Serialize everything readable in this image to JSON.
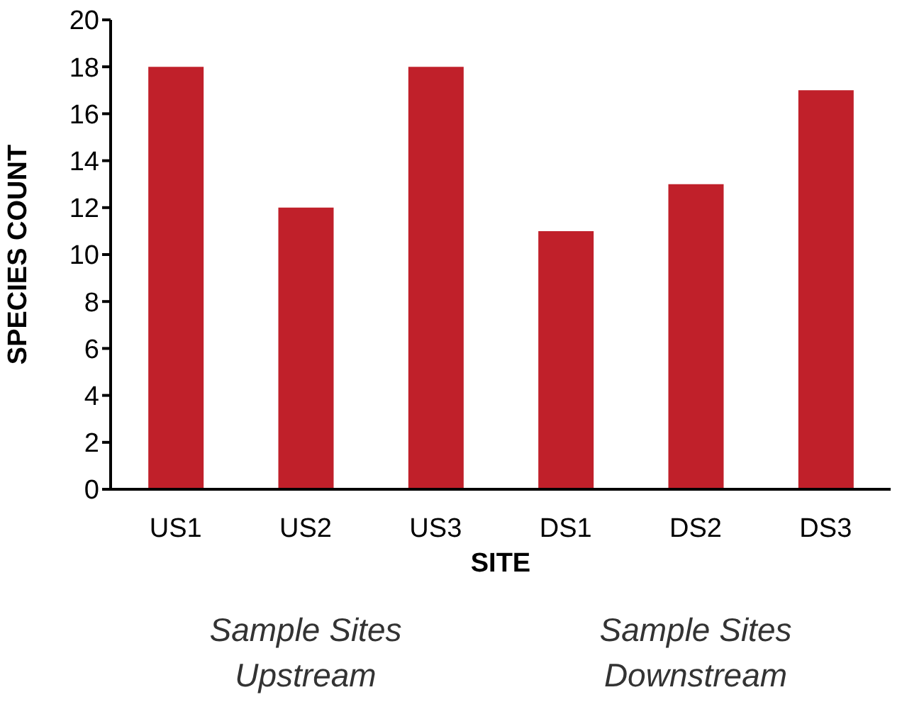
{
  "chart_data": {
    "type": "bar",
    "xlabel": "SITE",
    "ylabel": "SPECIES COUNT",
    "categories": [
      "US1",
      "US2",
      "US3",
      "DS1",
      "DS2",
      "DS3"
    ],
    "values": [
      18,
      12,
      18,
      11,
      13,
      17
    ],
    "color": "#c0202a",
    "ylim": [
      0,
      20
    ],
    "yticks": [
      0,
      2,
      4,
      6,
      8,
      10,
      12,
      14,
      16,
      18,
      20
    ],
    "grid": false,
    "legend": false,
    "annotations": [
      "Sample Sites Upstream",
      "Sample Sites Downstream"
    ]
  }
}
